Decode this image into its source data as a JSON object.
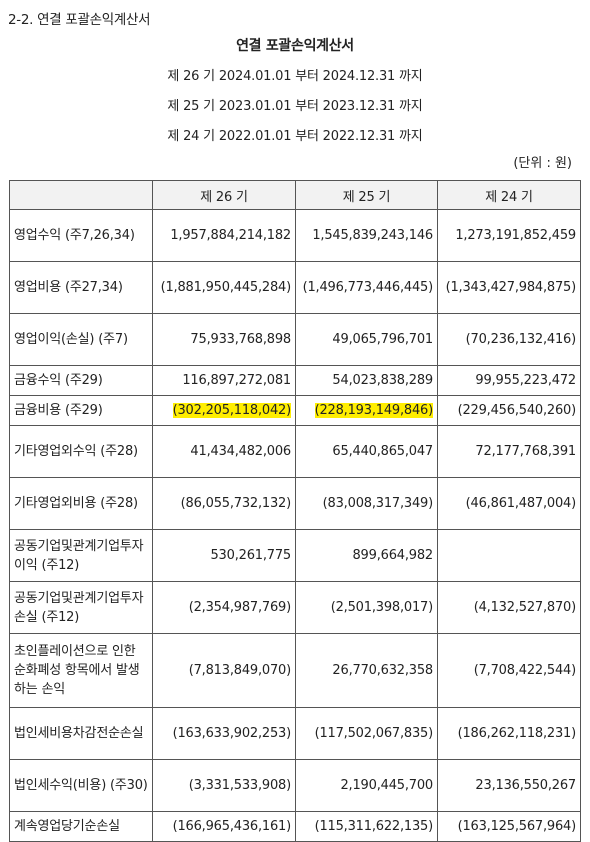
{
  "section_heading": "2-2. 연결 포괄손익계산서",
  "title": "연결 포괄손익계산서",
  "periods": [
    "제 26 기 2024.01.01 부터 2024.12.31 까지",
    "제 25 기 2023.01.01 부터 2023.12.31 까지",
    "제 24 기 2022.01.01 부터 2022.12.31 까지"
  ],
  "unit": "(단위 : 원)",
  "columns": [
    "",
    "제 26 기",
    "제 25 기",
    "제 24 기"
  ],
  "rows": [
    {
      "label": "영업수익 (주7,26,34)",
      "v26": "1,957,884,214,182",
      "v25": "1,545,839,243,146",
      "v24": "1,273,191,852,459"
    },
    {
      "label": "영업비용 (주27,34)",
      "v26": "(1,881,950,445,284)",
      "v25": "(1,496,773,446,445)",
      "v24": "(1,343,427,984,875)"
    },
    {
      "label": "영업이익(손실) (주7)",
      "v26": "75,933,768,898",
      "v25": "49,065,796,701",
      "v24": "(70,236,132,416)"
    },
    {
      "label": "금융수익 (주29)",
      "v26": "116,897,272,081",
      "v25": "54,023,838,289",
      "v24": "99,955,223,472"
    },
    {
      "label": "금융비용 (주29)",
      "v26": "(302,205,118,042)",
      "v25": "(228,193,149,846)",
      "v24": "(229,456,540,260)"
    },
    {
      "label": "기타영업외수익 (주28)",
      "v26": "41,434,482,006",
      "v25": "65,440,865,047",
      "v24": "72,177,768,391"
    },
    {
      "label": "기타영업외비용 (주28)",
      "v26": "(86,055,732,132)",
      "v25": "(83,008,317,349)",
      "v24": "(46,861,487,004)"
    },
    {
      "label": "공동기업및관계기업투자이익 (주12)",
      "v26": "530,261,775",
      "v25": "899,664,982",
      "v24": ""
    },
    {
      "label": "공동기업및관계기업투자손실 (주12)",
      "v26": "(2,354,987,769)",
      "v25": "(2,501,398,017)",
      "v24": "(4,132,527,870)"
    },
    {
      "label": "초인플레이션으로 인한 순화폐성 항목에서 발생하는 손익",
      "v26": "(7,813,849,070)",
      "v25": "26,770,632,358",
      "v24": "(7,708,422,544)"
    },
    {
      "label": "법인세비용차감전순손실",
      "v26": "(163,633,902,253)",
      "v25": "(117,502,067,835)",
      "v24": "(186,262,118,231)"
    },
    {
      "label": "법인세수익(비용) (주30)",
      "v26": "(3,331,533,908)",
      "v25": "2,190,445,700",
      "v24": "23,136,550,267"
    },
    {
      "label": "계속영업당기순손실",
      "v26": "(166,965,436,161)",
      "v25": "(115,311,622,135)",
      "v24": "(163,125,567,964)"
    }
  ],
  "highlight_color": "#ffee00"
}
